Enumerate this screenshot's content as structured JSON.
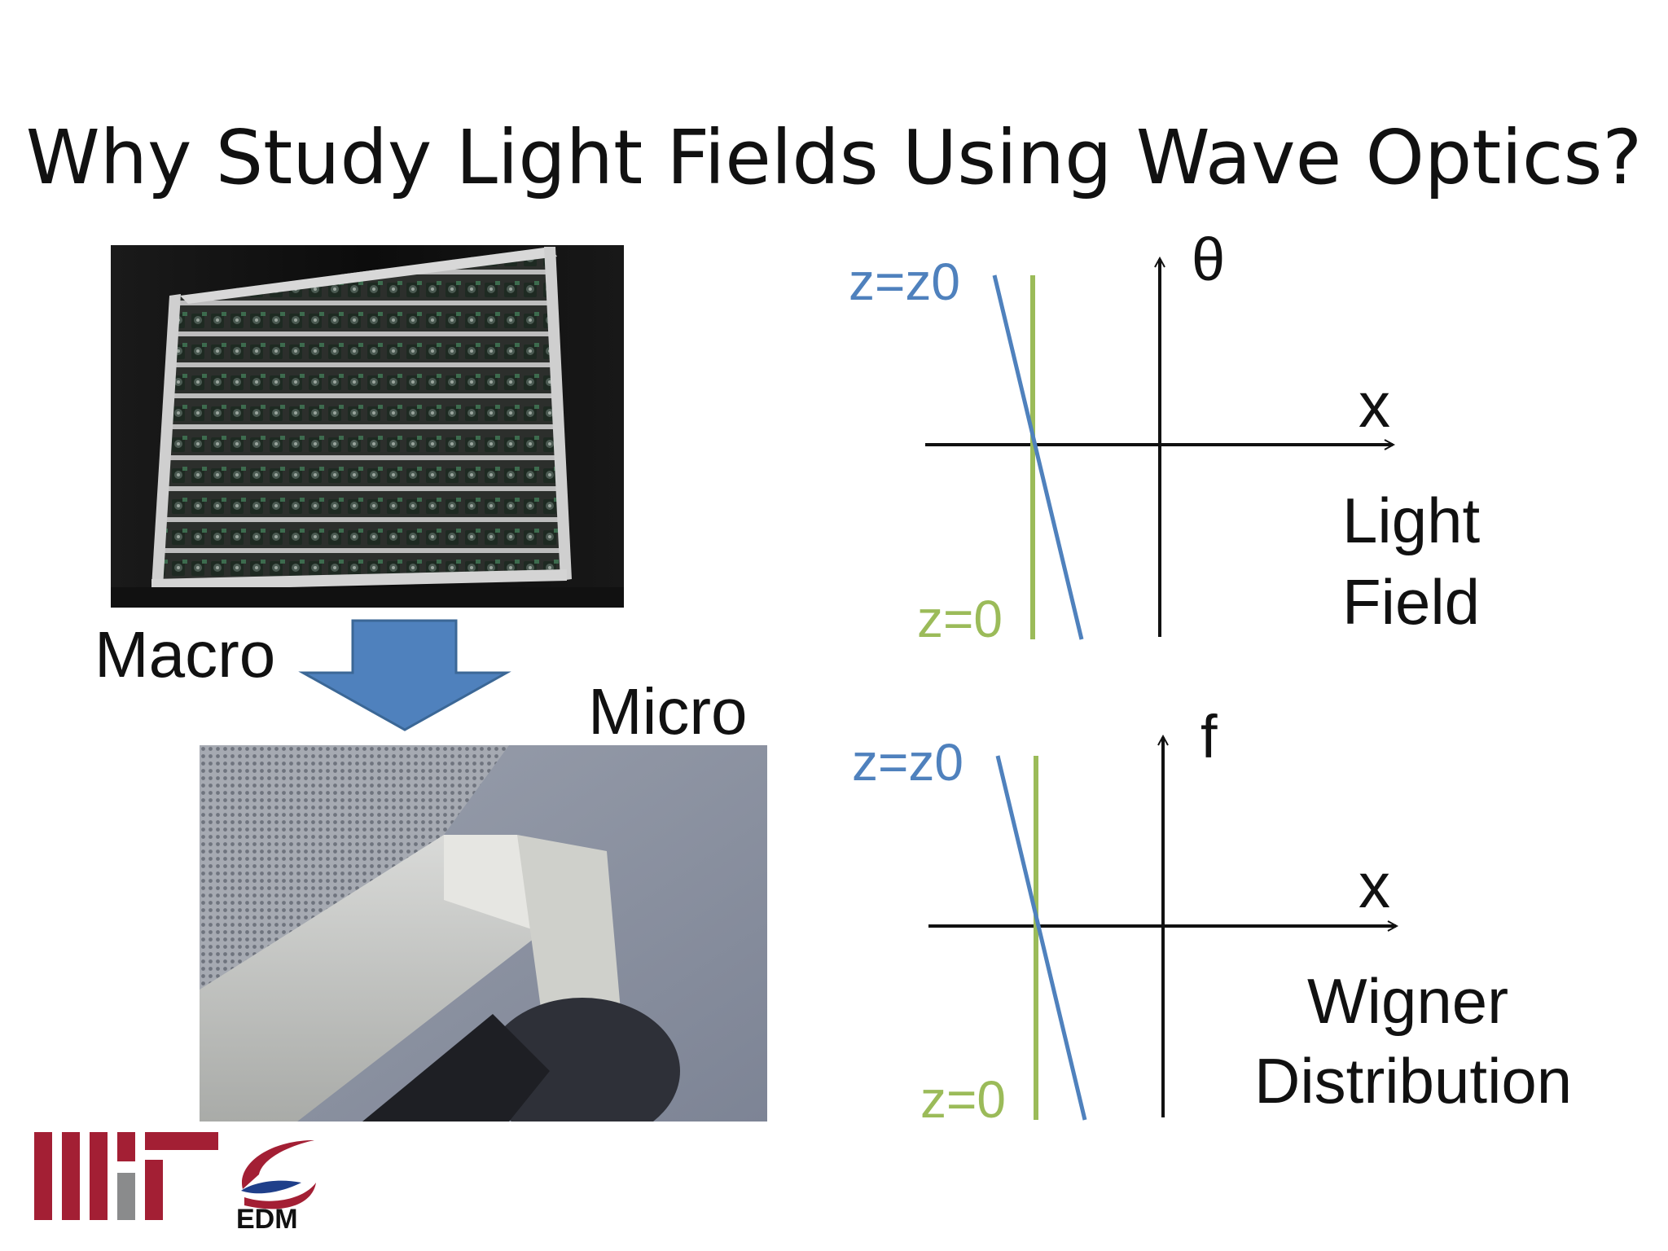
{
  "slide": {
    "title": "Why Study Light Fields Using Wave Optics?"
  },
  "left": {
    "macro_label": "Macro",
    "micro_label": "Micro",
    "arrow_color": "#4f81bd"
  },
  "diagram_top": {
    "axis_vertical_label": "θ",
    "axis_horizontal_label": "x",
    "blue_line_label": "z=z0",
    "green_line_label": "z=0",
    "caption_line1": "Light",
    "caption_line2": "Field"
  },
  "diagram_bottom": {
    "axis_vertical_label": "f",
    "axis_horizontal_label": "x",
    "blue_line_label": "z=z0",
    "green_line_label": "z=0",
    "caption_line1": "Wigner",
    "caption_line2": "Distribution"
  },
  "logos": {
    "mit_color": "#a31f34",
    "mit_gray": "#8a8b8c",
    "edm_text": "EDM"
  },
  "colors": {
    "blue_line": "#4f81bd",
    "green_line": "#9bbb59"
  }
}
